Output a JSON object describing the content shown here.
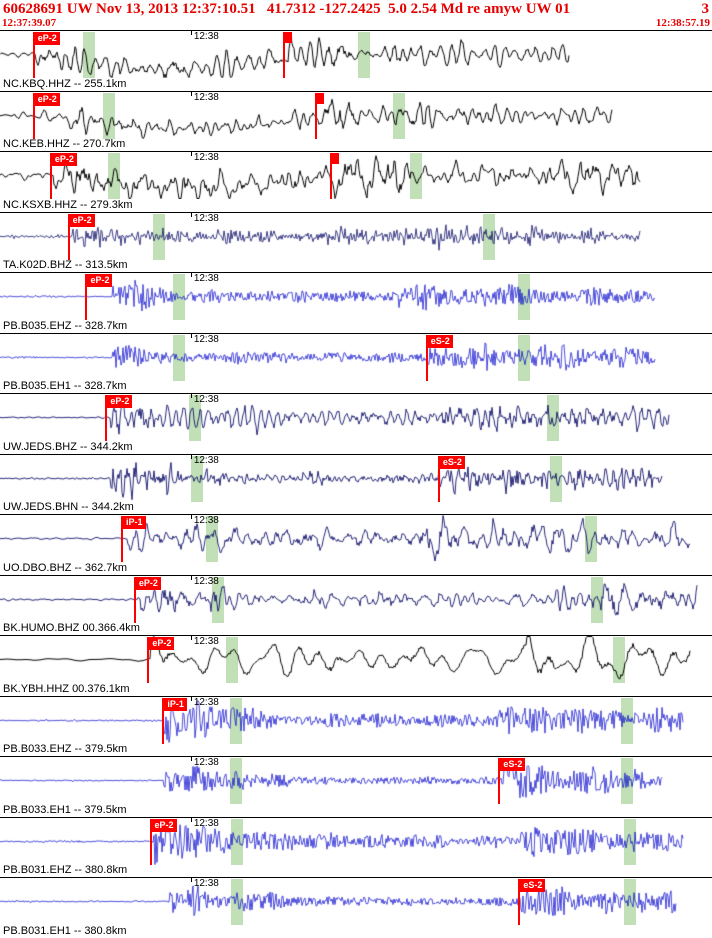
{
  "header": {
    "event_summary": "60628691 UW Nov 13, 2013 12:37:10.51   41.7312 -127.2425  5.0 2.54 Md re amyw UW 01",
    "panel_number": "3",
    "window_start": "12:37:39.07",
    "window_end": "12:38:57.19"
  },
  "time_axis": {
    "tick_label": "12:38",
    "tick_frac": 0.268
  },
  "colors": {
    "header_text": "#e60000",
    "pick_marker": "#ff0000",
    "arrival_band": "rgba(151,204,135,0.6)",
    "background": "#ffffff"
  },
  "traces": [
    {
      "label": "NC.KBQ.HHZ -- 255.1km",
      "color": "#000000",
      "picks": [
        {
          "label": "eP-2",
          "frac": 0.046
        },
        {
          "label": "",
          "frac": 0.397
        }
      ],
      "bands": [
        0.117,
        0.503
      ],
      "wave": {
        "seed": 11,
        "freq": 60,
        "jit": 0.22,
        "base": 2.5,
        "onset": 0.05,
        "amp": 9,
        "decay": 3,
        "sustain": 3,
        "s_on": 0.4,
        "s_amp": 13,
        "s_decay": 0.45,
        "end": 0.8,
        "arc": [
          0.05,
          0.42,
          15
        ],
        "lw": 1
      }
    },
    {
      "label": "NC.KEB.HHZ -- 270.7km",
      "color": "#000000",
      "picks": [
        {
          "label": "eP-2",
          "frac": 0.046
        },
        {
          "label": "",
          "frac": 0.442
        }
      ],
      "bands": [
        0.145,
        0.552
      ],
      "wave": {
        "seed": 22,
        "freq": 55,
        "jit": 0.22,
        "base": 2.5,
        "onset": 0.05,
        "amp": 9,
        "decay": 3,
        "sustain": 3,
        "s_on": 0.44,
        "s_amp": 13,
        "s_decay": 0.45,
        "end": 0.86,
        "arc": [
          0.06,
          0.46,
          13
        ],
        "lw": 1
      }
    },
    {
      "label": "NC.KSXB.HHZ -- 279.3km",
      "color": "#000000",
      "picks": [
        {
          "label": "eP-2",
          "frac": 0.07
        },
        {
          "label": "",
          "frac": 0.463
        }
      ],
      "bands": [
        0.152,
        0.576
      ],
      "wave": {
        "seed": 33,
        "freq": 55,
        "jit": 0.25,
        "base": 2.5,
        "onset": 0.075,
        "amp": 9,
        "decay": 3,
        "sustain": 3,
        "s_on": 0.46,
        "s_amp": 13,
        "s_decay": 0.5,
        "end": 0.9,
        "arc": [
          0.08,
          0.46,
          12
        ],
        "lw": 1
      }
    },
    {
      "label": "TA.K02D.BHZ -- 313.5km",
      "color": "#10106a",
      "picks": [
        {
          "label": "eP-2",
          "frac": 0.095
        }
      ],
      "bands": [
        0.215,
        0.678
      ],
      "wave": {
        "seed": 44,
        "freq": 110,
        "jit": 0.45,
        "base": 1.5,
        "onset": 0.1,
        "amp": 8,
        "decay": 1.2,
        "sustain": 2.5,
        "s_on": 0.6,
        "s_amp": 11,
        "s_decay": 0.5,
        "end": 0.9,
        "lw": 0.8
      }
    },
    {
      "label": "PB.B035.EHZ -- 328.7km",
      "color": "#0000cc",
      "picks": [
        {
          "label": "eP-2",
          "frac": 0.12
        }
      ],
      "bands": [
        0.243,
        0.727
      ],
      "wave": {
        "seed": 55,
        "freq": 320,
        "jit": 0.88,
        "base": 0.9,
        "onset": 0.158,
        "amp": 20,
        "decay": 0.05,
        "sustain": 5,
        "s_on": 0.56,
        "s_amp": 9,
        "s_decay": 0.35,
        "end": 0.92,
        "lw": 0.7
      }
    },
    {
      "label": "PB.B035.EH1 -- 328.7km",
      "color": "#0000cc",
      "picks": [
        {
          "label": "eS-2",
          "frac": 0.598
        }
      ],
      "bands": [
        0.243,
        0.727
      ],
      "wave": {
        "seed": 66,
        "freq": 320,
        "jit": 0.88,
        "base": 0.9,
        "onset": 0.158,
        "amp": 15,
        "decay": 0.06,
        "sustain": 4.5,
        "s_on": 0.6,
        "s_amp": 11,
        "s_decay": 0.3,
        "end": 0.92,
        "lw": 0.7
      }
    },
    {
      "label": "UW.JEDS.BHZ -- 344.2km",
      "color": "#10106a",
      "picks": [
        {
          "label": "eP-2",
          "frac": 0.148
        }
      ],
      "bands": [
        0.266,
        0.768
      ],
      "wave": {
        "seed": 77,
        "freq": 75,
        "jit": 0.38,
        "base": 1.2,
        "onset": 0.155,
        "amp": 12,
        "decay": 0.3,
        "sustain": 5,
        "s_on": 0.62,
        "s_amp": 14,
        "s_decay": 0.8,
        "end": 0.94,
        "lw": 0.9
      }
    },
    {
      "label": "UW.JEDS.BHN -- 344.2km",
      "color": "#10106a",
      "picks": [
        {
          "label": "eS-2",
          "frac": 0.615
        }
      ],
      "bands": [
        0.268,
        0.772
      ],
      "wave": {
        "seed": 88,
        "freq": 95,
        "jit": 0.45,
        "base": 1.2,
        "onset": 0.155,
        "amp": 15,
        "decay": 0.12,
        "sustain": 4.5,
        "s_on": 0.615,
        "s_amp": 12,
        "s_decay": 0.4,
        "end": 0.93,
        "lw": 0.9
      }
    },
    {
      "label": "UO.DBO.BHZ -- 362.7km",
      "color": "#10106a",
      "picks": [
        {
          "label": "iP-1",
          "frac": 0.17
        }
      ],
      "bands": [
        0.29,
        0.822
      ],
      "wave": {
        "seed": 99,
        "freq": 45,
        "jit": 0.3,
        "base": 1,
        "onset": 0.176,
        "amp": 10,
        "decay": 0.35,
        "sustain": 5,
        "s_on": 0.55,
        "s_amp": 13,
        "s_decay": 0.9,
        "end": 0.97,
        "lw": 0.9
      }
    },
    {
      "label": "BK.HUMO.BHZ 00.366.4km",
      "color": "#10106a",
      "picks": [
        {
          "label": "eP-2",
          "frac": 0.188
        }
      ],
      "bands": [
        0.298,
        0.83
      ],
      "wave": {
        "seed": 110,
        "freq": 55,
        "jit": 0.35,
        "base": 1,
        "onset": 0.193,
        "amp": 10,
        "decay": 0.3,
        "sustain": 4.5,
        "s_on": 0.78,
        "s_amp": 12,
        "s_decay": 0.4,
        "end": 0.98,
        "lw": 0.9
      }
    },
    {
      "label": "BK.YBH.HHZ 00.376.1km",
      "color": "#000000",
      "picks": [
        {
          "label": "eP-2",
          "frac": 0.207
        }
      ],
      "bands": [
        0.317,
        0.861
      ],
      "wave": {
        "seed": 121,
        "freq": 28,
        "jit": 0.12,
        "base": 1,
        "onset": 0.212,
        "amp": 13,
        "decay": 0.5,
        "sustain": 7,
        "s_on": 0.74,
        "s_amp": 16,
        "s_decay": 0.5,
        "end": 0.97,
        "lw": 1
      }
    },
    {
      "label": "PB.B033.EHZ -- 379.5km",
      "color": "#0000cc",
      "picks": [
        {
          "label": "iP-1",
          "frac": 0.228
        }
      ],
      "bands": [
        0.323,
        0.872
      ],
      "wave": {
        "seed": 132,
        "freq": 320,
        "jit": 0.9,
        "base": 0.8,
        "onset": 0.23,
        "amp": 22,
        "decay": 0.09,
        "sustain": 5.5,
        "s_on": 0.7,
        "s_amp": 8,
        "s_decay": 0.4,
        "end": 0.96,
        "lw": 0.7
      }
    },
    {
      "label": "PB.B033.EH1 -- 379.5km",
      "color": "#0000cc",
      "picks": [
        {
          "label": "eS-2",
          "frac": 0.7
        }
      ],
      "bands": [
        0.323,
        0.872
      ],
      "wave": {
        "seed": 143,
        "freq": 320,
        "jit": 0.9,
        "base": 0.8,
        "onset": 0.23,
        "amp": 17,
        "decay": 0.08,
        "sustain": 4.5,
        "s_on": 0.7,
        "s_amp": 10,
        "s_decay": 0.3,
        "end": 0.93,
        "lw": 0.7
      }
    },
    {
      "label": "PB.B031.EHZ -- 380.8km",
      "color": "#0000cc",
      "picks": [
        {
          "label": "eP-2",
          "frac": 0.21
        }
      ],
      "bands": [
        0.325,
        0.876
      ],
      "wave": {
        "seed": 154,
        "freq": 320,
        "jit": 0.9,
        "base": 0.8,
        "onset": 0.215,
        "amp": 22,
        "decay": 0.11,
        "sustain": 5.5,
        "s_on": 0.73,
        "s_amp": 8,
        "s_decay": 0.4,
        "end": 0.96,
        "lw": 0.7
      }
    },
    {
      "label": "PB.B031.EH1 -- 380.8km",
      "color": "#0000cc",
      "picks": [
        {
          "label": "eS-2",
          "frac": 0.728
        }
      ],
      "bands": [
        0.325,
        0.876
      ],
      "wave": {
        "seed": 165,
        "freq": 320,
        "jit": 0.9,
        "base": 0.8,
        "onset": 0.238,
        "amp": 15,
        "decay": 0.08,
        "sustain": 4.5,
        "s_on": 0.73,
        "s_amp": 11,
        "s_decay": 0.35,
        "end": 0.95,
        "lw": 0.7
      }
    }
  ]
}
